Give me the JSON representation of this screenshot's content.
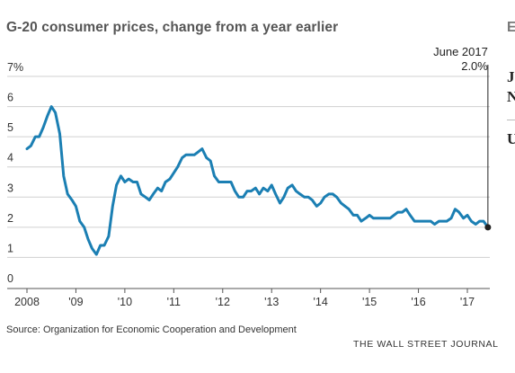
{
  "header": {
    "title": "G-20 consumer prices, change from a year earlier"
  },
  "side_panel": {
    "letters": [
      "E",
      "J",
      "N",
      "U"
    ]
  },
  "footer": {
    "source": "Source: Organization for Economic Cooperation and Development",
    "credit": "THE WALL STREET JOURNAL"
  },
  "colors": {
    "line": "#1b7fb3",
    "grid": "#d0d0d0",
    "axis": "#555555",
    "text": "#333333"
  },
  "chart_data": {
    "type": "line",
    "title": "G-20 consumer prices, change from a year earlier",
    "ylim": [
      0,
      7
    ],
    "yticks": [
      0,
      1,
      2,
      3,
      4,
      5,
      6,
      7
    ],
    "ytick_labels": [
      "0",
      "1",
      "2",
      "3",
      "4",
      "5",
      "6",
      "7%"
    ],
    "xlim": [
      2008,
      2017.6
    ],
    "xticks": [
      2008,
      2009,
      2010,
      2011,
      2012,
      2013,
      2014,
      2015,
      2016,
      2017
    ],
    "xtick_labels": [
      "2008",
      "'09",
      "'10",
      "'11",
      "'12",
      "'13",
      "'14",
      "'15",
      "'16",
      "'17"
    ],
    "grid": true,
    "annotation": {
      "label": "June 2017",
      "value_label": "2.0%",
      "x": 2017.42,
      "y": 2.0
    },
    "series": [
      {
        "x": [
          2008.0,
          2008.08,
          2008.17,
          2008.25,
          2008.33,
          2008.42,
          2008.5,
          2008.58,
          2008.67,
          2008.75,
          2008.83,
          2008.92,
          2009.0,
          2009.08,
          2009.17,
          2009.25,
          2009.33,
          2009.42,
          2009.5,
          2009.58,
          2009.67,
          2009.75,
          2009.83,
          2009.92,
          2010.0,
          2010.08,
          2010.17,
          2010.25,
          2010.33,
          2010.42,
          2010.5,
          2010.58,
          2010.67,
          2010.75,
          2010.83,
          2010.92,
          2011.0,
          2011.08,
          2011.17,
          2011.25,
          2011.33,
          2011.42,
          2011.5,
          2011.58,
          2011.67,
          2011.75,
          2011.83,
          2011.92,
          2012.0,
          2012.08,
          2012.17,
          2012.25,
          2012.33,
          2012.42,
          2012.5,
          2012.58,
          2012.67,
          2012.75,
          2012.83,
          2012.92,
          2013.0,
          2013.08,
          2013.17,
          2013.25,
          2013.33,
          2013.42,
          2013.5,
          2013.58,
          2013.67,
          2013.75,
          2013.83,
          2013.92,
          2014.0,
          2014.08,
          2014.17,
          2014.25,
          2014.33,
          2014.42,
          2014.5,
          2014.58,
          2014.67,
          2014.75,
          2014.83,
          2014.92,
          2015.0,
          2015.08,
          2015.17,
          2015.25,
          2015.33,
          2015.42,
          2015.5,
          2015.58,
          2015.67,
          2015.75,
          2015.83,
          2015.92,
          2016.0,
          2016.08,
          2016.17,
          2016.25,
          2016.33,
          2016.42,
          2016.5,
          2016.58,
          2016.67,
          2016.75,
          2016.83,
          2016.92,
          2017.0,
          2017.08,
          2017.17,
          2017.25,
          2017.33,
          2017.42
        ],
        "y": [
          4.6,
          4.7,
          5.0,
          5.0,
          5.3,
          5.7,
          6.0,
          5.8,
          5.1,
          3.7,
          3.1,
          2.9,
          2.7,
          2.2,
          2.0,
          1.6,
          1.3,
          1.1,
          1.4,
          1.4,
          1.7,
          2.7,
          3.4,
          3.7,
          3.5,
          3.6,
          3.5,
          3.5,
          3.1,
          3.0,
          2.9,
          3.1,
          3.3,
          3.2,
          3.5,
          3.6,
          3.8,
          4.0,
          4.3,
          4.4,
          4.4,
          4.4,
          4.5,
          4.6,
          4.3,
          4.2,
          3.7,
          3.5,
          3.5,
          3.5,
          3.5,
          3.2,
          3.0,
          3.0,
          3.2,
          3.2,
          3.3,
          3.1,
          3.3,
          3.2,
          3.4,
          3.1,
          2.8,
          3.0,
          3.3,
          3.4,
          3.2,
          3.1,
          3.0,
          3.0,
          2.9,
          2.7,
          2.8,
          3.0,
          3.1,
          3.1,
          3.0,
          2.8,
          2.7,
          2.6,
          2.4,
          2.4,
          2.2,
          2.3,
          2.4,
          2.3,
          2.3,
          2.3,
          2.3,
          2.3,
          2.4,
          2.5,
          2.5,
          2.6,
          2.4,
          2.2,
          2.2,
          2.2,
          2.2,
          2.2,
          2.1,
          2.2,
          2.2,
          2.2,
          2.3,
          2.6,
          2.5,
          2.3,
          2.4,
          2.2,
          2.1,
          2.2,
          2.2,
          2.0
        ]
      }
    ]
  }
}
